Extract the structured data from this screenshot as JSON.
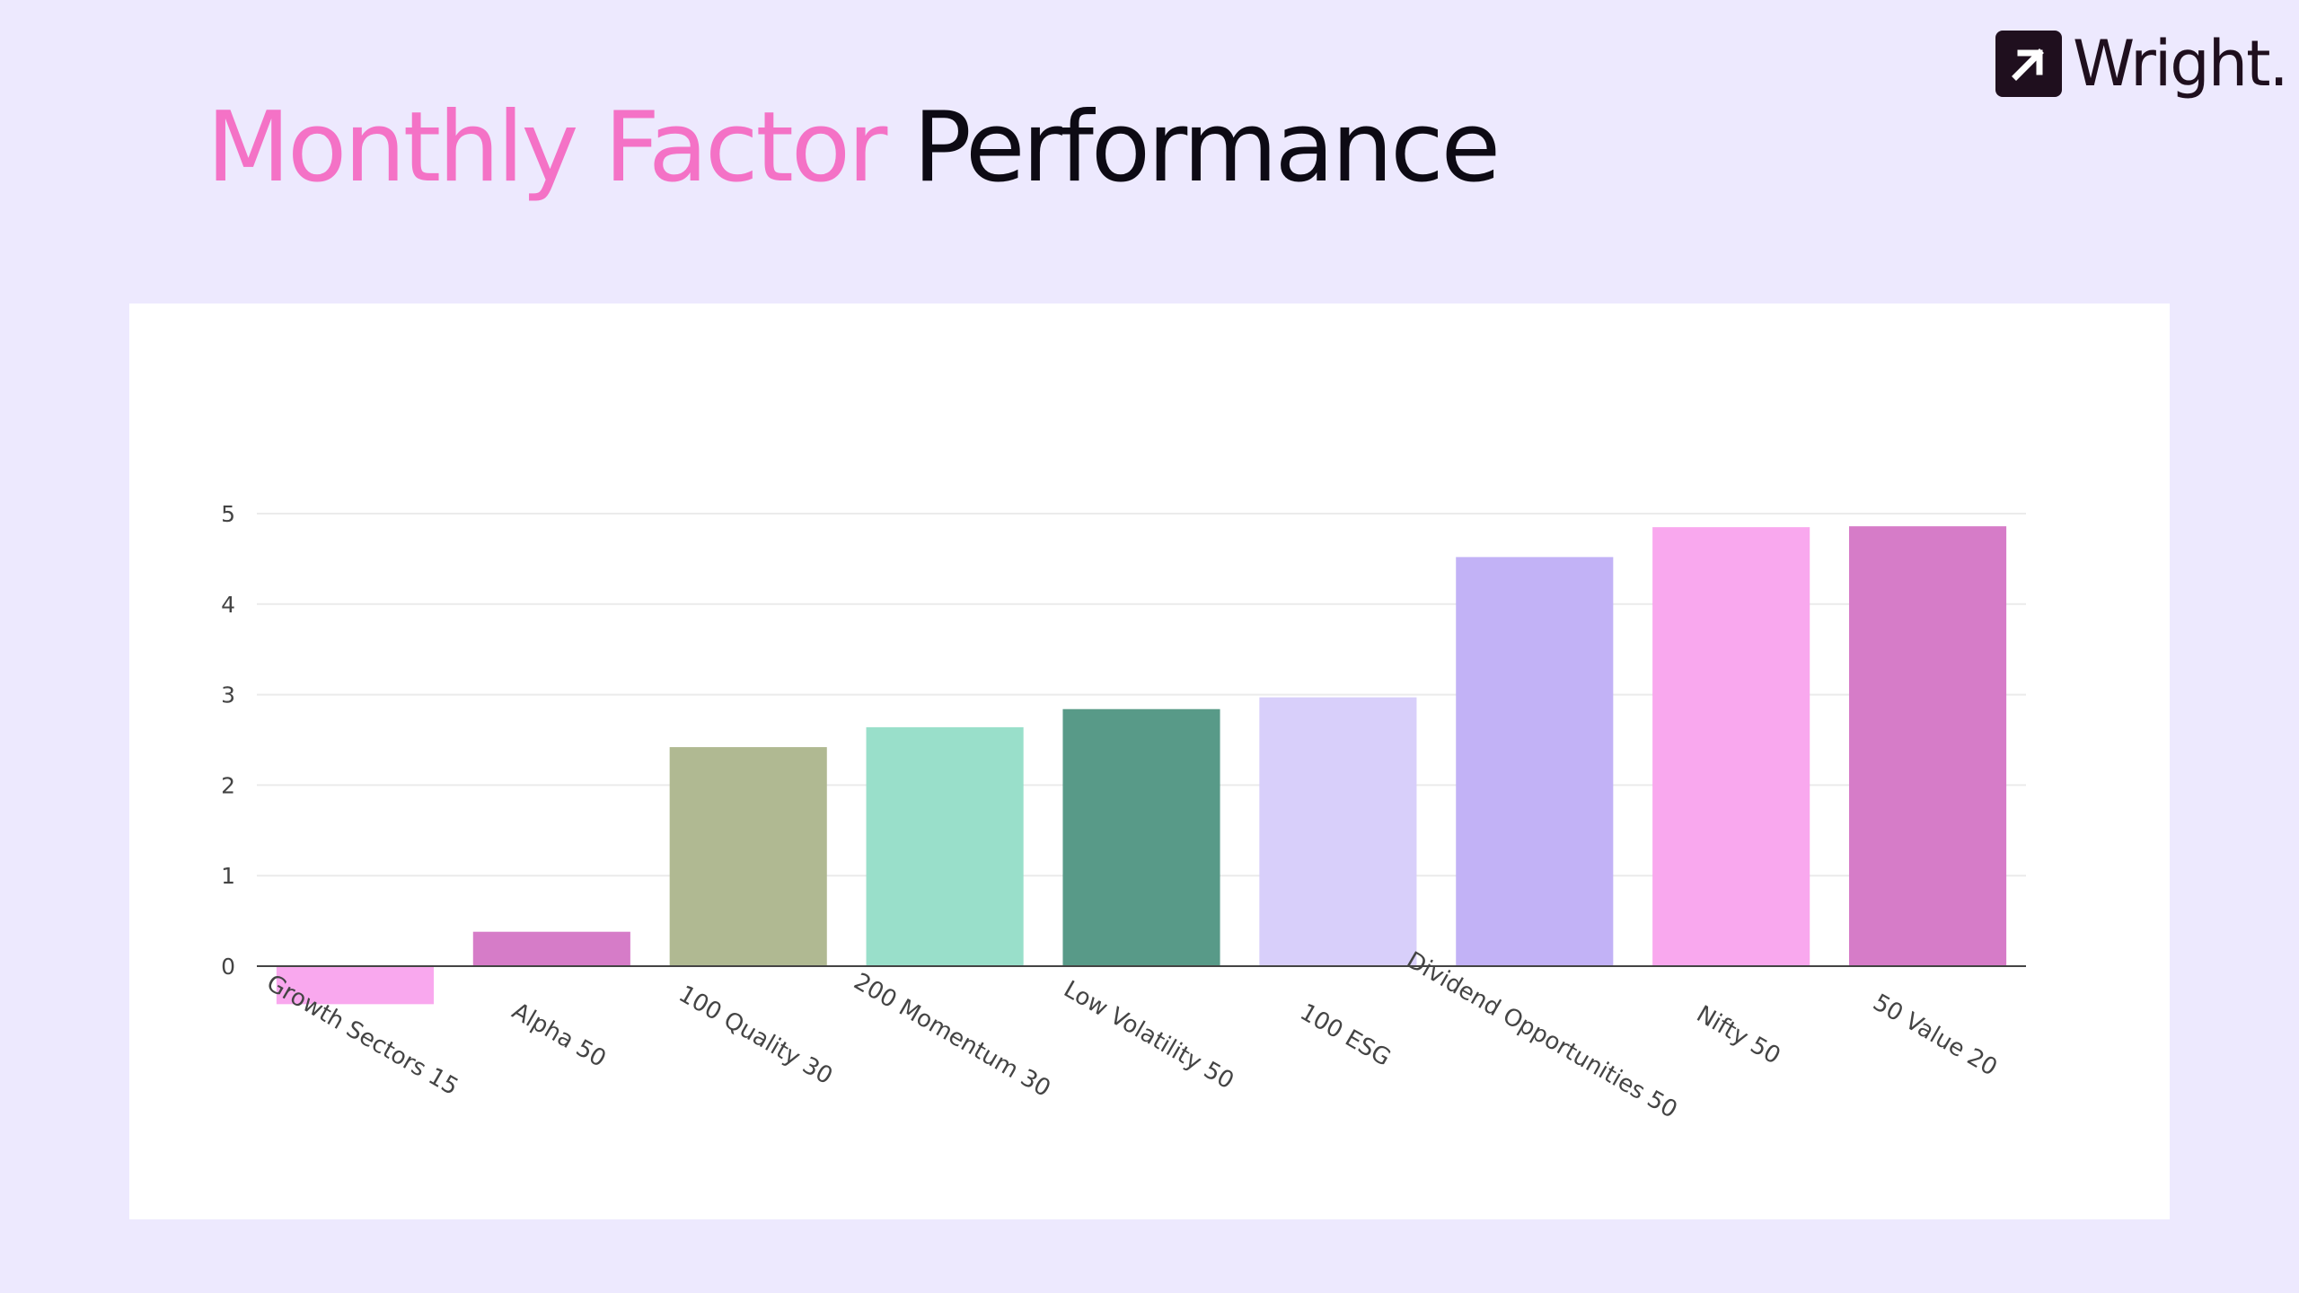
{
  "header": {
    "title_highlight": "Monthly Factor",
    "title_rest": "Performance"
  },
  "brand": {
    "name": "Wright.",
    "icon": "arrow-up-right-icon"
  },
  "colors": {
    "background": "#ede9fe",
    "title_highlight": "#f472c6",
    "title_rest": "#0d0a14",
    "brand": "#1f0f1e"
  },
  "chart_data": {
    "type": "bar",
    "categories": [
      "Growth Sectors 15",
      "Alpha 50",
      "100 Quality 30",
      "200 Momentum 30",
      "Low Volatility 50",
      "100 ESG",
      "Dividend Opportunities 50",
      "Nifty 50",
      "50 Value 20"
    ],
    "values": [
      -0.42,
      0.38,
      2.42,
      2.64,
      2.84,
      2.97,
      4.52,
      4.85,
      4.86
    ],
    "colors": [
      "#f9a8ee",
      "#d67cc8",
      "#b0b992",
      "#99dfca",
      "#589a88",
      "#d8cffa",
      "#c2b2f6",
      "#f9a8ee",
      "#d67cc8"
    ],
    "yticks": [
      0,
      1,
      2,
      3,
      4,
      5
    ],
    "ylim": [
      -0.6,
      5.2
    ],
    "grid": true,
    "legend": "none"
  }
}
